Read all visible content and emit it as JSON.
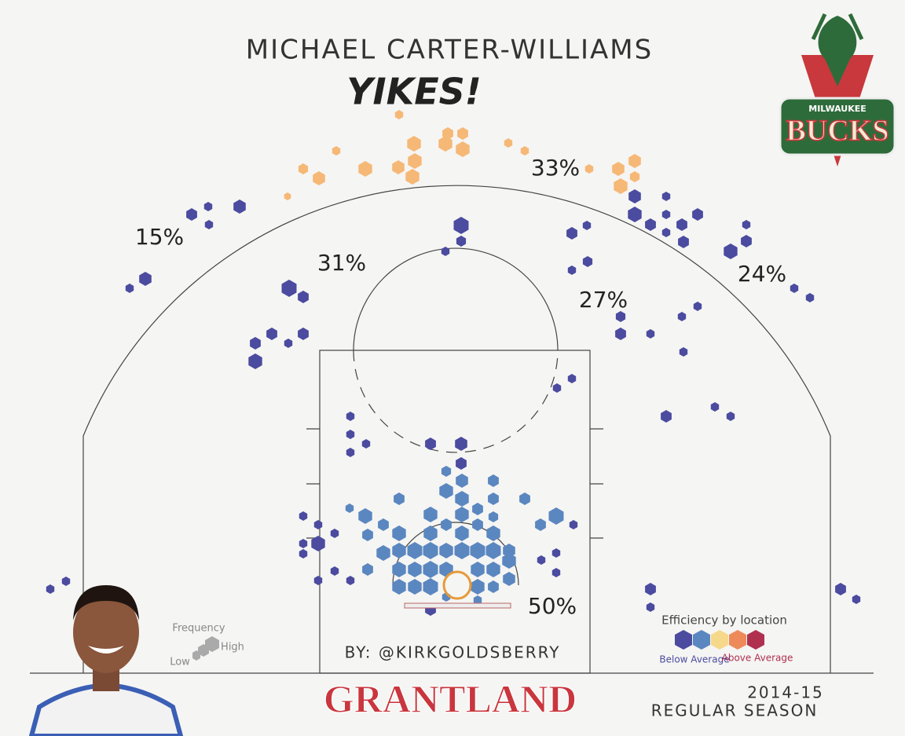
{
  "header": {
    "title": "MICHAEL CARTER-WILLIAMS",
    "subtitle": "YIKES!"
  },
  "zones": [
    "15%",
    "31%",
    "33%",
    "27%",
    "24%",
    "50%"
  ],
  "frequency_legend": {
    "title": "Frequency",
    "high": "High",
    "low": "Low"
  },
  "efficiency_legend": {
    "title": "Efficiency by location",
    "below": "Below Average",
    "above": "Above Average"
  },
  "byline": "BY: @KIRKGOLDSBERRY",
  "footer": {
    "brand": "GRANTLAND",
    "season": "2014-15",
    "season_type": "REGULAR SEASON"
  },
  "logo": {
    "city": "MILWAUKEE",
    "team": "BUCKS"
  }
}
